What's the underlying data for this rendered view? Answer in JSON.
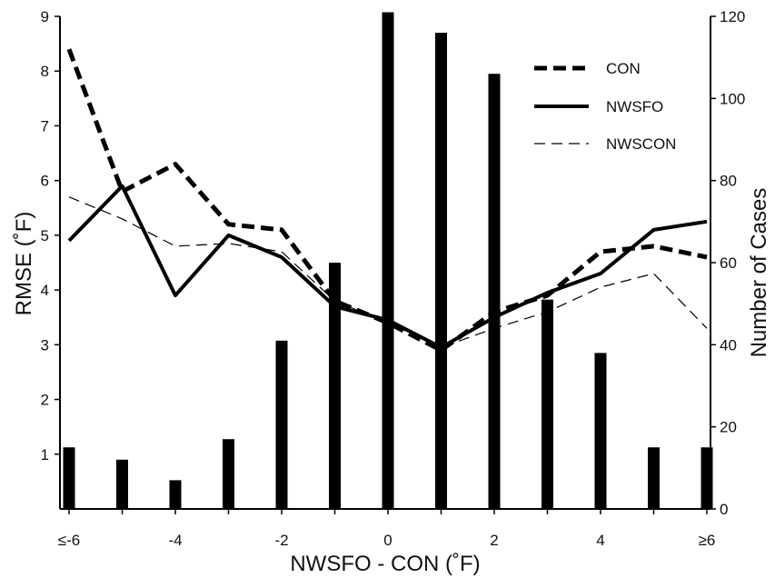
{
  "chart_data": {
    "type": "bar+line",
    "title": "",
    "xlabel": "NWSFO - CON (˚F)",
    "ylabel_left": "RMSE (˚F)",
    "ylabel_right": "Number of Cases",
    "x": [
      -6,
      -5,
      -4,
      -3,
      -2,
      -1,
      0,
      1,
      2,
      3,
      4,
      5,
      6
    ],
    "x_tick_values": [
      -6,
      -4,
      -2,
      0,
      2,
      4,
      6
    ],
    "x_tick_labels": [
      "≤-6",
      "-4",
      "-2",
      "0",
      "2",
      "4",
      "≥6"
    ],
    "xlim": [
      -6,
      6
    ],
    "ylim_left": [
      0,
      9
    ],
    "y_ticks_left": [
      "1",
      "2",
      "3",
      "4",
      "5",
      "6",
      "7",
      "8",
      "9"
    ],
    "ylim_right": [
      0,
      120
    ],
    "y_ticks_right": [
      "0",
      "20",
      "40",
      "60",
      "80",
      "100",
      "120"
    ],
    "bars": {
      "axis": "right",
      "values": [
        15,
        12,
        7,
        17,
        41,
        60,
        121,
        116,
        106,
        51,
        38,
        15,
        15
      ]
    },
    "series": [
      {
        "name": "CON",
        "style": "thick-dashed",
        "values": [
          8.4,
          5.8,
          6.3,
          5.2,
          5.1,
          3.8,
          3.4,
          2.9,
          3.6,
          3.9,
          4.7,
          4.8,
          4.6
        ]
      },
      {
        "name": "NWSFO",
        "style": "thick-solid",
        "values": [
          4.9,
          5.9,
          3.9,
          5.0,
          4.6,
          3.7,
          3.45,
          2.95,
          3.5,
          3.95,
          4.3,
          5.1,
          5.25
        ]
      },
      {
        "name": "NWSCON",
        "style": "thin-dashed",
        "values": [
          5.7,
          5.3,
          4.8,
          4.85,
          4.7,
          3.8,
          3.4,
          2.95,
          3.3,
          3.6,
          4.05,
          4.3,
          3.3
        ]
      }
    ],
    "legend_position": "top-right",
    "grid": false
  }
}
